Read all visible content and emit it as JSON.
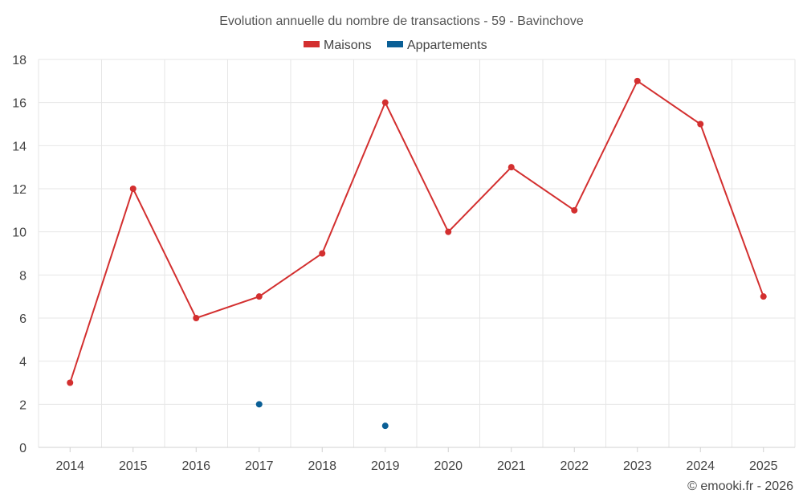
{
  "chart_data": {
    "type": "line",
    "title": "Evolution annuelle du nombre de transactions - 59 - Bavinchove",
    "categories": [
      "2014",
      "2015",
      "2016",
      "2017",
      "2018",
      "2019",
      "2020",
      "2021",
      "2022",
      "2023",
      "2024",
      "2025"
    ],
    "series": [
      {
        "name": "Maisons",
        "color": "#d32f2f",
        "values": [
          3,
          12,
          6,
          7,
          9,
          16,
          10,
          13,
          11,
          17,
          15,
          7
        ]
      },
      {
        "name": "Appartements",
        "color": "#0a5f96",
        "values": [
          null,
          null,
          null,
          2,
          null,
          1,
          null,
          null,
          null,
          null,
          null,
          null
        ]
      }
    ],
    "ylim": [
      0,
      18
    ],
    "yticks": [
      "0",
      "2",
      "4",
      "6",
      "8",
      "10",
      "12",
      "14",
      "16",
      "18"
    ],
    "grid": true,
    "legend_position": "top-center"
  },
  "credit": "© emooki.fr - 2026"
}
